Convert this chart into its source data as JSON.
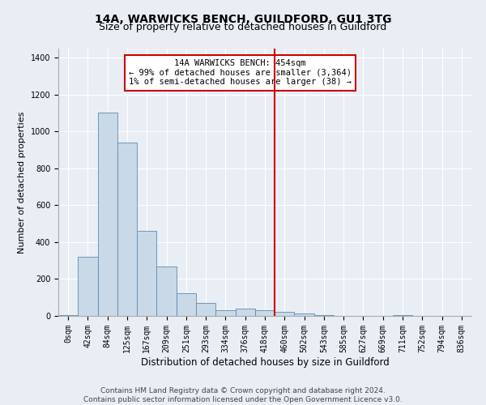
{
  "title": "14A, WARWICKS BENCH, GUILDFORD, GU1 3TG",
  "subtitle": "Size of property relative to detached houses in Guildford",
  "xlabel": "Distribution of detached houses by size in Guildford",
  "ylabel": "Number of detached properties",
  "footer_line1": "Contains HM Land Registry data © Crown copyright and database right 2024.",
  "footer_line2": "Contains public sector information licensed under the Open Government Licence v3.0.",
  "bar_labels": [
    "0sqm",
    "42sqm",
    "84sqm",
    "125sqm",
    "167sqm",
    "209sqm",
    "251sqm",
    "293sqm",
    "334sqm",
    "376sqm",
    "418sqm",
    "460sqm",
    "502sqm",
    "543sqm",
    "585sqm",
    "627sqm",
    "669sqm",
    "711sqm",
    "752sqm",
    "794sqm",
    "836sqm"
  ],
  "bar_values": [
    5,
    320,
    1105,
    940,
    460,
    270,
    125,
    70,
    30,
    40,
    30,
    20,
    15,
    5,
    0,
    0,
    0,
    5,
    0,
    0,
    0
  ],
  "bar_color": "#c9d9e8",
  "bar_edge_color": "#5c8ab0",
  "vline_x": 10.5,
  "vline_color": "#cc0000",
  "annotation_line1": "14A WARWICKS BENCH: 454sqm",
  "annotation_line2": "← 99% of detached houses are smaller (3,364)",
  "annotation_line3": "1% of semi-detached houses are larger (38) →",
  "annotation_box_color": "#ffffff",
  "annotation_box_edge_color": "#cc0000",
  "ylim": [
    0,
    1450
  ],
  "yticks": [
    0,
    200,
    400,
    600,
    800,
    1000,
    1200,
    1400
  ],
  "background_color": "#e8eef4",
  "plot_background": "#e8eef4",
  "grid_color": "#ffffff",
  "title_fontsize": 10,
  "subtitle_fontsize": 9,
  "tick_fontsize": 7,
  "ylabel_fontsize": 8,
  "xlabel_fontsize": 8.5,
  "footer_fontsize": 6.5,
  "annotation_fontsize": 7.5
}
